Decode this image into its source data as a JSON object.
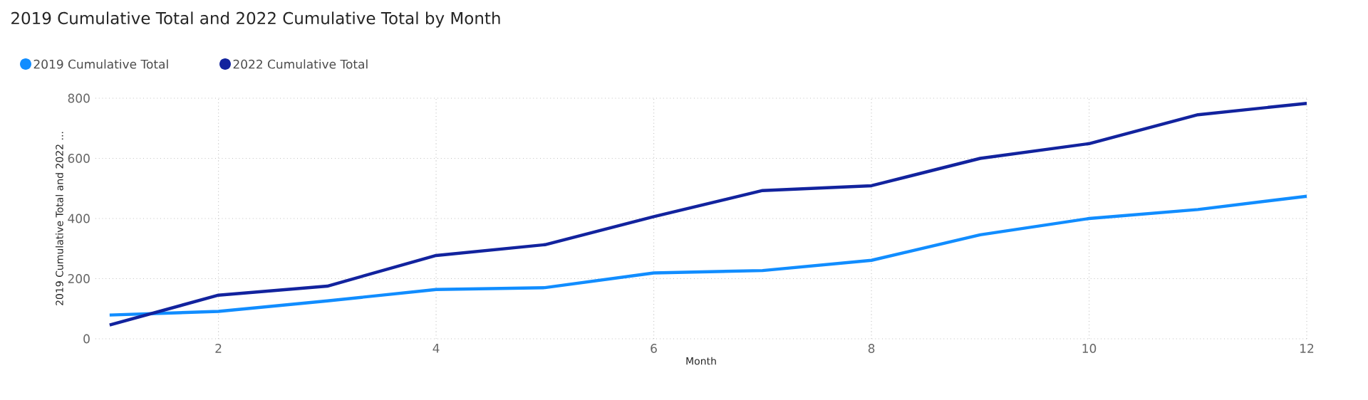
{
  "chart_data": {
    "type": "line",
    "title": "2019 Cumulative Total and 2022 Cumulative Total by Month",
    "xlabel": "Month",
    "ylabel": "2019 Cumulative Total and 2022 ...",
    "x": [
      1,
      2,
      3,
      4,
      5,
      6,
      7,
      8,
      9,
      10,
      11,
      12
    ],
    "series": [
      {
        "name": "2019 Cumulative Total",
        "color": "#118dff",
        "values": [
          79,
          91,
          126,
          164,
          170,
          219,
          227,
          261,
          346,
          400,
          430,
          474
        ]
      },
      {
        "name": "2022 Cumulative Total",
        "color": "#12239e",
        "values": [
          46,
          145,
          175,
          277,
          313,
          406,
          493,
          509,
          600,
          649,
          745,
          783
        ]
      }
    ],
    "xlim": [
      0.87,
      12
    ],
    "xticks": [
      2,
      4,
      6,
      8,
      10,
      12
    ],
    "ylim": [
      0,
      800
    ],
    "yticks": [
      0,
      200,
      400,
      600,
      800
    ],
    "grid": true,
    "legend": "top left",
    "marker": "none",
    "line_style": "solid"
  }
}
